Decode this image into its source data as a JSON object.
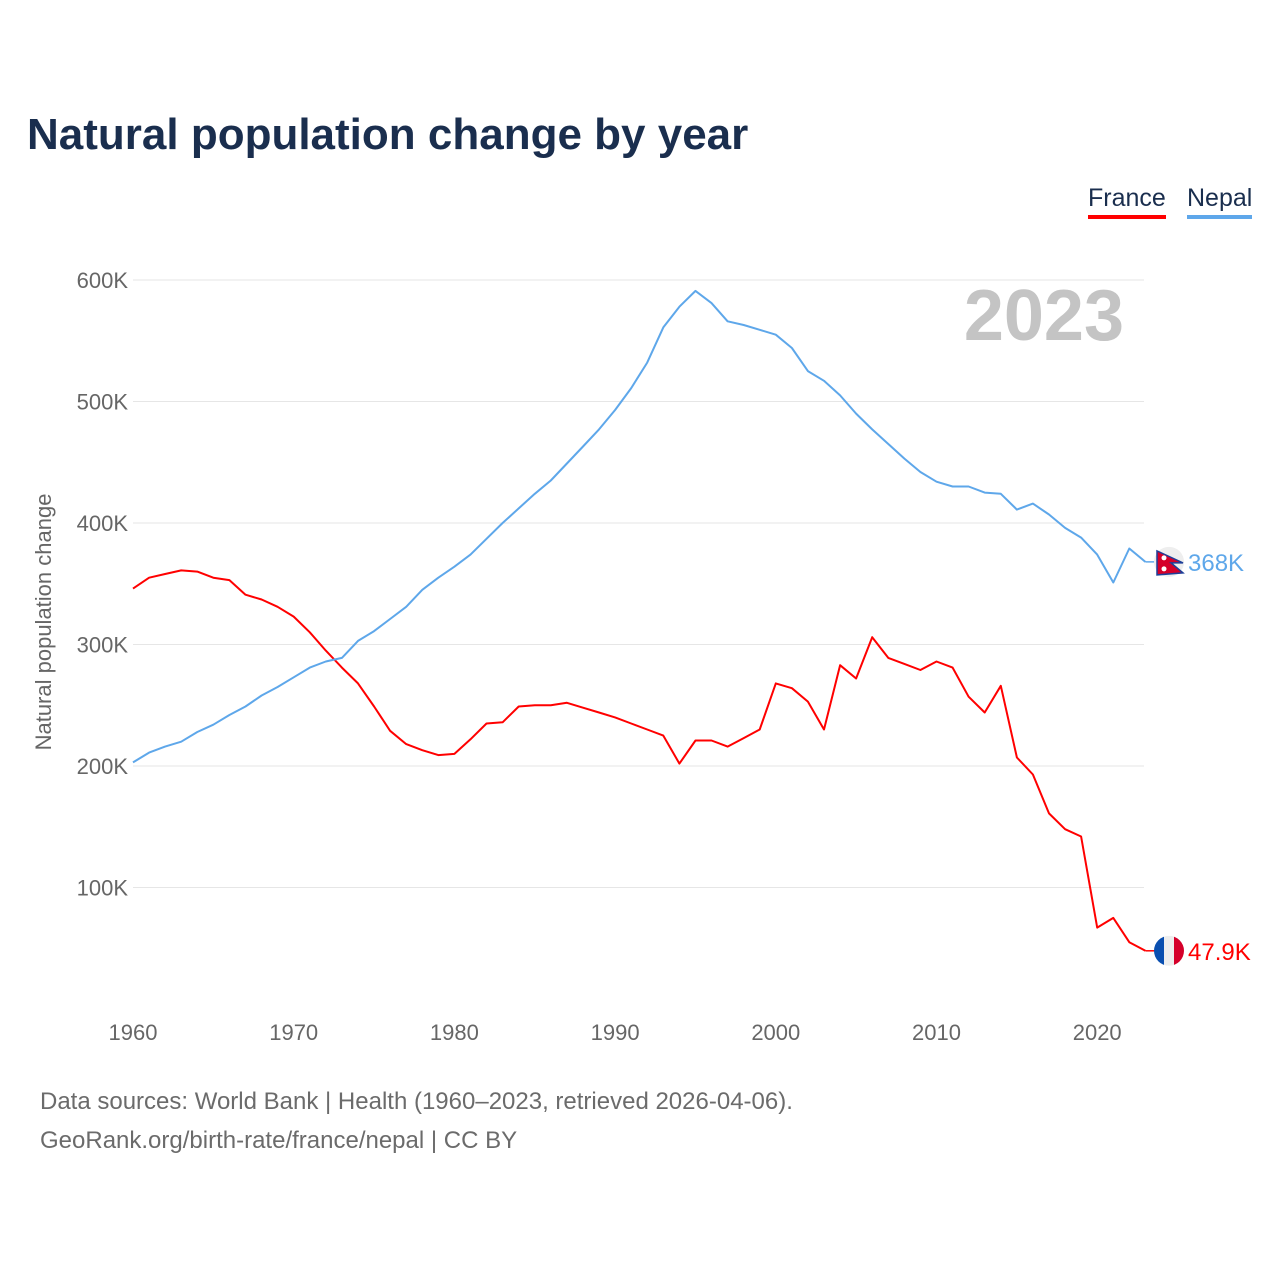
{
  "title": "Natural population change by year",
  "legend": [
    {
      "label": "France",
      "color": "#ff0000"
    },
    {
      "label": "Nepal",
      "color": "#5ea7ea"
    }
  ],
  "year_watermark": "2023",
  "footer": {
    "line1": "Data sources: World Bank | Health (1960–2023, retrieved 2026-04-06).",
    "line2": "GeoRank.org/birth-rate/france/nepal | CC BY"
  },
  "chart_data": {
    "type": "line",
    "title": "Natural population change by year",
    "xlabel": "",
    "ylabel": "Natural population change",
    "xlim": [
      1960,
      2023
    ],
    "ylim": [
      0,
      600000
    ],
    "x_ticks": [
      1960,
      1970,
      1980,
      1990,
      2000,
      2010,
      2020
    ],
    "y_ticks": [
      100000,
      200000,
      300000,
      400000,
      500000,
      600000
    ],
    "y_tick_labels": [
      "100K",
      "200K",
      "300K",
      "400K",
      "500K",
      "600K"
    ],
    "grid": true,
    "legend_position": "top-right",
    "x": [
      1960,
      1961,
      1962,
      1963,
      1964,
      1965,
      1966,
      1967,
      1968,
      1969,
      1970,
      1971,
      1972,
      1973,
      1974,
      1975,
      1976,
      1977,
      1978,
      1979,
      1980,
      1981,
      1982,
      1983,
      1984,
      1985,
      1986,
      1987,
      1988,
      1989,
      1990,
      1991,
      1992,
      1993,
      1994,
      1995,
      1996,
      1997,
      1998,
      1999,
      2000,
      2001,
      2002,
      2003,
      2004,
      2005,
      2006,
      2007,
      2008,
      2009,
      2010,
      2011,
      2012,
      2013,
      2014,
      2015,
      2016,
      2017,
      2018,
      2019,
      2020,
      2021,
      2022,
      2023
    ],
    "series": [
      {
        "name": "France",
        "color": "#ff0000",
        "end_label": "47.9K",
        "flag": "france-flag",
        "values": [
          346,
          355,
          358,
          361,
          360,
          355,
          353,
          341,
          337,
          331,
          323,
          310,
          295,
          281,
          268,
          249,
          229,
          218,
          213,
          209,
          210,
          222,
          235,
          236,
          249,
          250,
          250,
          252,
          248,
          244,
          240,
          235,
          230,
          225,
          202,
          221,
          221,
          216,
          223,
          230,
          268,
          264,
          253,
          230,
          283,
          272,
          306,
          289,
          284,
          279,
          286,
          281,
          257,
          244,
          266,
          207,
          193,
          161,
          148,
          142,
          67,
          75,
          55,
          47.9
        ]
      },
      {
        "name": "Nepal",
        "color": "#5ea7ea",
        "end_label": "368K",
        "flag": "nepal-flag",
        "values": [
          203,
          211,
          216,
          220,
          228,
          234,
          242,
          249,
          258,
          265,
          273,
          281,
          286,
          289,
          303,
          311,
          321,
          331,
          345,
          355,
          364,
          374,
          387,
          400,
          412,
          424,
          435,
          449,
          463,
          477,
          493,
          511,
          532,
          561,
          578,
          591,
          581,
          566,
          563,
          559,
          555,
          544,
          525,
          517,
          505,
          490,
          477,
          465,
          453,
          442,
          434,
          430,
          430,
          425,
          424,
          411,
          416,
          407,
          396,
          388,
          374,
          351,
          379,
          368
        ]
      }
    ],
    "value_unit": "thousands"
  }
}
